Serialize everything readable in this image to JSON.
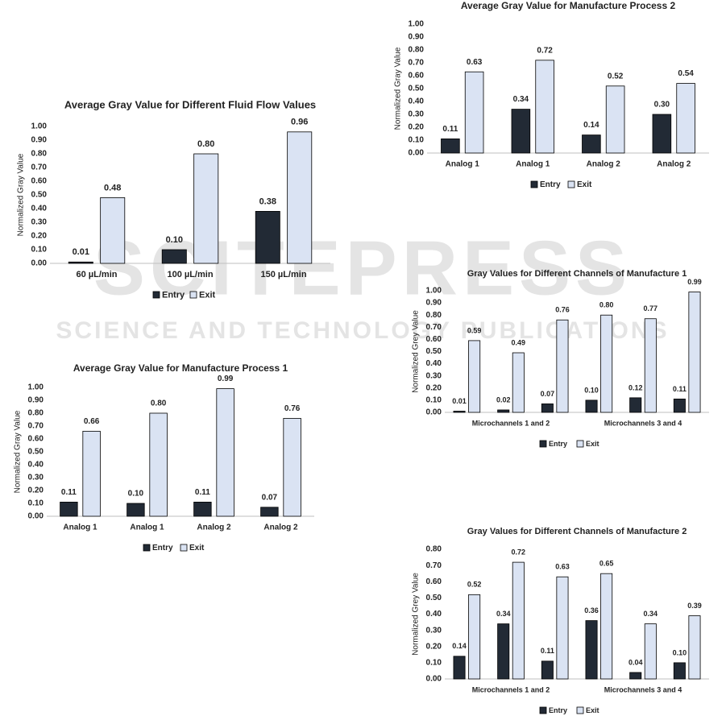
{
  "watermark": {
    "title": "SCITEPRESS",
    "subtitle": "SCIENCE AND TECHNOLOGY PUBLICATIONS"
  },
  "chart_data": [
    {
      "type": "bar",
      "title": "Average Gray Value for Different Fluid Flow Values",
      "ylabel": "Normalized Gray Value",
      "categories": [
        "60 µL/min",
        "100 µL/min",
        "150 µL/min"
      ],
      "series": [
        {
          "name": "Entry",
          "color": "#222a35",
          "values": [
            0.01,
            0.1,
            0.38
          ],
          "value_labels": [
            "0.01",
            "0.10",
            "0.38"
          ]
        },
        {
          "name": "Exit",
          "color": "#dae3f3",
          "values": [
            0.48,
            0.8,
            0.96
          ],
          "value_labels": [
            "0.48",
            "0.80",
            "0.96"
          ]
        }
      ],
      "ylim": [
        0,
        1
      ],
      "yticks": [
        {
          "value": 0,
          "label": "0.00"
        },
        {
          "value": 0.1,
          "label": "0.10"
        },
        {
          "value": 0.2,
          "label": "0.20"
        },
        {
          "value": 0.3,
          "label": "0.30"
        },
        {
          "value": 0.4,
          "label": "0.40"
        },
        {
          "value": 0.5,
          "label": "0.50"
        },
        {
          "value": 0.6,
          "label": "0.60"
        },
        {
          "value": 0.7,
          "label": "0.70"
        },
        {
          "value": 0.8,
          "label": "0.80"
        },
        {
          "value": 0.9,
          "label": "0.90"
        },
        {
          "value": 1,
          "label": "1.00"
        }
      ]
    },
    {
      "type": "bar",
      "title": "Average Gray Value for Manufacture Process 1",
      "ylabel": "Normalized Gray Value",
      "categories": [
        "Analog 1",
        "Analog 1",
        "Analog 2",
        "Analog 2"
      ],
      "series": [
        {
          "name": "Entry",
          "color": "#222a35",
          "values": [
            0.11,
            0.1,
            0.11,
            0.07
          ],
          "value_labels": [
            "0.11",
            "0.10",
            "0.11",
            "0.07"
          ]
        },
        {
          "name": "Exit",
          "color": "#dae3f3",
          "values": [
            0.66,
            0.8,
            0.99,
            0.76
          ],
          "value_labels": [
            "0.66",
            "0.80",
            "0.99",
            "0.76"
          ]
        }
      ],
      "ylim": [
        0,
        1
      ],
      "yticks": [
        {
          "value": 0,
          "label": "0.00"
        },
        {
          "value": 0.1,
          "label": "0.10"
        },
        {
          "value": 0.2,
          "label": "0.20"
        },
        {
          "value": 0.3,
          "label": "0.30"
        },
        {
          "value": 0.4,
          "label": "0.40"
        },
        {
          "value": 0.5,
          "label": "0.50"
        },
        {
          "value": 0.6,
          "label": "0.60"
        },
        {
          "value": 0.7,
          "label": "0.70"
        },
        {
          "value": 0.8,
          "label": "0.80"
        },
        {
          "value": 0.9,
          "label": "0.90"
        },
        {
          "value": 1,
          "label": "1.00"
        }
      ]
    },
    {
      "type": "bar",
      "title": "Average Gray Value for Manufacture Process 2",
      "ylabel": "Normalized Gray Value",
      "categories": [
        "Analog 1",
        "Analog 1",
        "Analog 2",
        "Analog 2"
      ],
      "series": [
        {
          "name": "Entry",
          "color": "#222a35",
          "values": [
            0.11,
            0.34,
            0.14,
            0.3
          ],
          "value_labels": [
            "0.11",
            "0.34",
            "0.14",
            "0.30"
          ]
        },
        {
          "name": "Exit",
          "color": "#dae3f3",
          "values": [
            0.63,
            0.72,
            0.52,
            0.54
          ],
          "value_labels": [
            "0.63",
            "0.72",
            "0.52",
            "0.54"
          ]
        }
      ],
      "ylim": [
        0,
        1
      ],
      "yticks": [
        {
          "value": 0,
          "label": "0.00"
        },
        {
          "value": 0.1,
          "label": "0.10"
        },
        {
          "value": 0.2,
          "label": "0.20"
        },
        {
          "value": 0.3,
          "label": "0.30"
        },
        {
          "value": 0.4,
          "label": "0.40"
        },
        {
          "value": 0.5,
          "label": "0.50"
        },
        {
          "value": 0.6,
          "label": "0.60"
        },
        {
          "value": 0.7,
          "label": "0.70"
        },
        {
          "value": 0.8,
          "label": "0.80"
        },
        {
          "value": 0.9,
          "label": "0.90"
        },
        {
          "value": 1,
          "label": "1.00"
        }
      ]
    },
    {
      "type": "bar",
      "title": "Gray Values for Different Channels of Manufacture 1",
      "ylabel": "Normalized Grey Value",
      "categories": [
        null,
        "Microchannels 1 and 2",
        null,
        null,
        "Microchannels 3 and 4",
        null
      ],
      "series": [
        {
          "name": "Entry",
          "color": "#222a35",
          "values": [
            0.01,
            0.02,
            0.07,
            0.1,
            0.12,
            0.11
          ],
          "value_labels": [
            "0.01",
            "0.02",
            "0.07",
            "0.10",
            "0.12",
            "0.11"
          ]
        },
        {
          "name": "Exit",
          "color": "#dae3f3",
          "values": [
            0.59,
            0.49,
            0.76,
            0.8,
            0.77,
            0.99
          ],
          "value_labels": [
            "0.59",
            "0.49",
            "0.76",
            "0.80",
            "0.77",
            "0.99"
          ]
        }
      ],
      "ylim": [
        0,
        1
      ],
      "yticks": [
        {
          "value": 0,
          "label": "0.00"
        },
        {
          "value": 0.1,
          "label": "0.10"
        },
        {
          "value": 0.2,
          "label": "0.20"
        },
        {
          "value": 0.3,
          "label": "0.30"
        },
        {
          "value": 0.4,
          "label": "0.40"
        },
        {
          "value": 0.5,
          "label": "0.50"
        },
        {
          "value": 0.6,
          "label": "0.60"
        },
        {
          "value": 0.7,
          "label": "0.70"
        },
        {
          "value": 0.8,
          "label": "0.80"
        },
        {
          "value": 0.9,
          "label": "0.90"
        },
        {
          "value": 1,
          "label": "1.00"
        }
      ]
    },
    {
      "type": "bar",
      "title": "Gray Values for Different Channels of Manufacture 2",
      "ylabel": "Normalized Grey Value",
      "categories": [
        null,
        "Microchannels 1 and 2",
        null,
        null,
        "Microchannels 3 and 4",
        null
      ],
      "series": [
        {
          "name": "Entry",
          "color": "#222a35",
          "values": [
            0.14,
            0.34,
            0.11,
            0.36,
            0.04,
            0.1
          ],
          "value_labels": [
            "0.14",
            "0.34",
            "0.11",
            "0.36",
            "0.04",
            "0.10"
          ]
        },
        {
          "name": "Exit",
          "color": "#dae3f3",
          "values": [
            0.52,
            0.72,
            0.63,
            0.65,
            0.34,
            0.39
          ],
          "value_labels": [
            "0.52",
            "0.72",
            "0.63",
            "0.65",
            "0.34",
            "0.39"
          ]
        }
      ],
      "ylim": [
        0,
        0.8
      ],
      "yticks": [
        {
          "value": 0,
          "label": "0.00"
        },
        {
          "value": 0.1,
          "label": "0.10"
        },
        {
          "value": 0.2,
          "label": "0.20"
        },
        {
          "value": 0.3,
          "label": "0.30"
        },
        {
          "value": 0.4,
          "label": "0.40"
        },
        {
          "value": 0.5,
          "label": "0.50"
        },
        {
          "value": 0.6,
          "label": "0.60"
        },
        {
          "value": 0.7,
          "label": "0.70"
        },
        {
          "value": 0.8,
          "label": "0.80"
        }
      ]
    }
  ]
}
